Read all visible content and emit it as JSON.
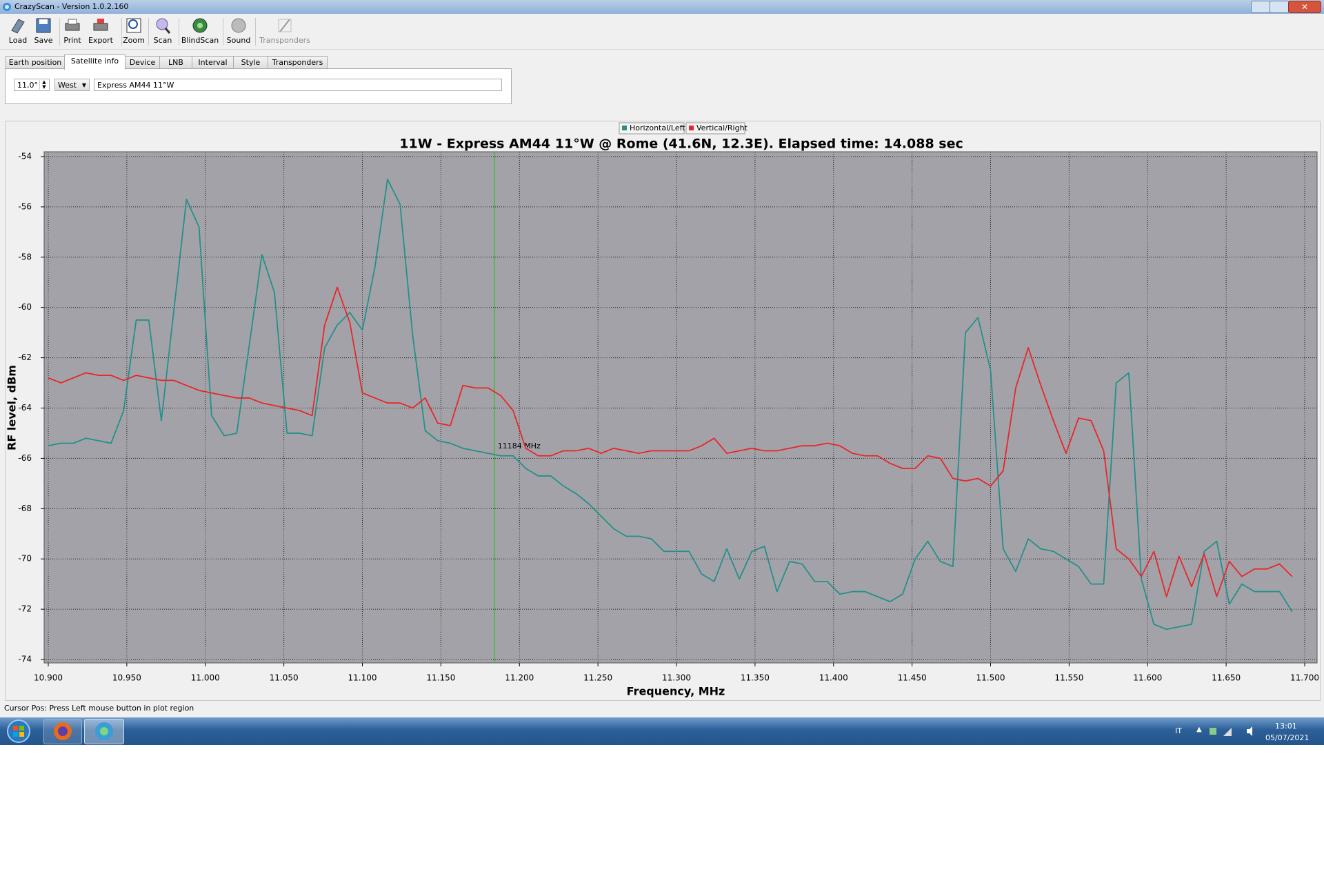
{
  "window": {
    "title": "CrazyScan - Version 1.0.2.160"
  },
  "toolbar": [
    "Load",
    "Save",
    "Print",
    "Export",
    "Zoom",
    "Scan",
    "BlindScan",
    "Sound",
    "Transponders"
  ],
  "tabs": [
    "Earth position",
    "Satellite info",
    "Device",
    "LNB",
    "Interval",
    "Style",
    "Transponders"
  ],
  "satellite_info": {
    "position": "11,0°",
    "direction": "West",
    "name": "Express AM44 11°W"
  },
  "chart_data": {
    "type": "line",
    "title": "11W - Express AM44 11°W @ Rome (41.6N, 12.3E). Elapsed time: 14.088 sec",
    "x_label": "Frequency, MHz",
    "y_label": "RF level, dBm",
    "x": [
      10.9,
      10.908,
      10.916,
      10.924,
      10.932,
      10.94,
      10.948,
      10.956,
      10.964,
      10.972,
      10.98,
      10.988,
      10.996,
      11.004,
      11.012,
      11.02,
      11.028,
      11.036,
      11.044,
      11.052,
      11.06,
      11.068,
      11.076,
      11.084,
      11.092,
      11.1,
      11.108,
      11.116,
      11.124,
      11.132,
      11.14,
      11.148,
      11.156,
      11.164,
      11.172,
      11.18,
      11.188,
      11.196,
      11.204,
      11.212,
      11.22,
      11.228,
      11.236,
      11.244,
      11.252,
      11.26,
      11.268,
      11.276,
      11.284,
      11.292,
      11.3,
      11.308,
      11.316,
      11.324,
      11.332,
      11.34,
      11.348,
      11.356,
      11.364,
      11.372,
      11.38,
      11.388,
      11.396,
      11.404,
      11.412,
      11.42,
      11.428,
      11.436,
      11.444,
      11.452,
      11.46,
      11.468,
      11.476,
      11.484,
      11.492,
      11.5,
      11.508,
      11.516,
      11.524,
      11.532,
      11.54,
      11.548,
      11.556,
      11.564,
      11.572,
      11.58,
      11.588,
      11.596,
      11.604,
      11.612,
      11.62,
      11.628,
      11.636,
      11.644,
      11.652,
      11.66,
      11.668,
      11.676,
      11.684,
      11.692
    ],
    "series": [
      {
        "name": "Horizontal/Left",
        "color": "#23908a",
        "values": [
          -65.5,
          -65.4,
          -65.4,
          -65.2,
          -65.3,
          -65.4,
          -64.1,
          -60.5,
          -60.5,
          -64.5,
          -60.1,
          -55.7,
          -56.8,
          -64.3,
          -65.1,
          -65.0,
          -61.5,
          -57.9,
          -59.4,
          -65.0,
          -65.0,
          -65.1,
          -61.6,
          -60.7,
          -60.2,
          -60.9,
          -58.4,
          -54.9,
          -55.9,
          -61.1,
          -64.9,
          -65.3,
          -65.4,
          -65.6,
          -65.7,
          -65.8,
          -65.9,
          -65.9,
          -66.4,
          -66.7,
          -66.7,
          -67.1,
          -67.4,
          -67.8,
          -68.3,
          -68.8,
          -69.1,
          -69.1,
          -69.2,
          -69.7,
          -69.7,
          -69.7,
          -70.6,
          -70.9,
          -69.6,
          -70.8,
          -69.7,
          -69.5,
          -71.3,
          -70.1,
          -70.2,
          -70.9,
          -70.9,
          -71.4,
          -71.3,
          -71.3,
          -71.5,
          -71.7,
          -71.4,
          -70.0,
          -69.3,
          -70.1,
          -70.3,
          -61.0,
          -60.4,
          -62.5,
          -69.6,
          -70.5,
          -69.2,
          -69.6,
          -69.7,
          -70.0,
          -70.3,
          -71.0,
          -71.0,
          -63.0,
          -62.6,
          -70.8,
          -72.6,
          -72.8,
          -72.7,
          -72.6,
          -69.7,
          -69.3,
          -71.8,
          -71.0,
          -71.3,
          -71.3,
          -71.3,
          -72.1
        ]
      },
      {
        "name": "Vertical/Right",
        "color": "#e8262a",
        "values": [
          -62.8,
          -63.0,
          -62.8,
          -62.6,
          -62.7,
          -62.7,
          -62.9,
          -62.7,
          -62.8,
          -62.9,
          -62.9,
          -63.1,
          -63.3,
          -63.4,
          -63.5,
          -63.6,
          -63.6,
          -63.8,
          -63.9,
          -64.0,
          -64.1,
          -64.3,
          -60.7,
          -59.2,
          -60.6,
          -63.4,
          -63.6,
          -63.8,
          -63.8,
          -64.0,
          -63.6,
          -64.6,
          -64.7,
          -63.1,
          -63.2,
          -63.2,
          -63.5,
          -64.1,
          -65.6,
          -65.9,
          -65.9,
          -65.7,
          -65.7,
          -65.6,
          -65.8,
          -65.6,
          -65.7,
          -65.8,
          -65.7,
          -65.7,
          -65.7,
          -65.7,
          -65.5,
          -65.2,
          -65.8,
          -65.7,
          -65.6,
          -65.7,
          -65.7,
          -65.6,
          -65.5,
          -65.5,
          -65.4,
          -65.5,
          -65.8,
          -65.9,
          -65.9,
          -66.2,
          -66.4,
          -66.4,
          -65.9,
          -66.0,
          -66.8,
          -66.9,
          -66.8,
          -67.1,
          -66.5,
          -63.2,
          -61.6,
          -63.1,
          -64.5,
          -65.8,
          -64.4,
          -64.5,
          -65.7,
          -69.6,
          -70.0,
          -70.7,
          -69.7,
          -71.5,
          -69.9,
          -71.1,
          -69.8,
          -71.5,
          -70.1,
          -70.7,
          -70.4,
          -70.4,
          -70.2,
          -70.7
        ]
      }
    ],
    "xlim": [
      10.9,
      11.7
    ],
    "xticks": [
      {
        "value": 10.9,
        "label": "10.900"
      },
      {
        "value": 10.95,
        "label": "10.950"
      },
      {
        "value": 11.0,
        "label": "11.000"
      },
      {
        "value": 11.05,
        "label": "11.050"
      },
      {
        "value": 11.1,
        "label": "11.100"
      },
      {
        "value": 11.15,
        "label": "11.150"
      },
      {
        "value": 11.2,
        "label": "11.200"
      },
      {
        "value": 11.25,
        "label": "11.250"
      },
      {
        "value": 11.3,
        "label": "11.300"
      },
      {
        "value": 11.35,
        "label": "11.350"
      },
      {
        "value": 11.4,
        "label": "11.400"
      },
      {
        "value": 11.45,
        "label": "11.450"
      },
      {
        "value": 11.5,
        "label": "11.500"
      },
      {
        "value": 11.55,
        "label": "11.550"
      },
      {
        "value": 11.6,
        "label": "11.600"
      },
      {
        "value": 11.65,
        "label": "11.650"
      },
      {
        "value": 11.7,
        "label": "11.700"
      }
    ],
    "ylim": [
      -74,
      -54
    ],
    "yticks": [
      -54,
      -56,
      -58,
      -60,
      -62,
      -64,
      -66,
      -68,
      -70,
      -72,
      -74
    ],
    "grid": true,
    "plot_background": "#a3a2a8",
    "cursor": {
      "value": 11.184,
      "label": "11184 MHz",
      "color": "#1fc41f"
    }
  },
  "status_bar": "Cursor Pos: Press Left mouse button in plot region",
  "taskbar": {
    "language": "IT",
    "time": "13:01",
    "date": "05/07/2021"
  }
}
